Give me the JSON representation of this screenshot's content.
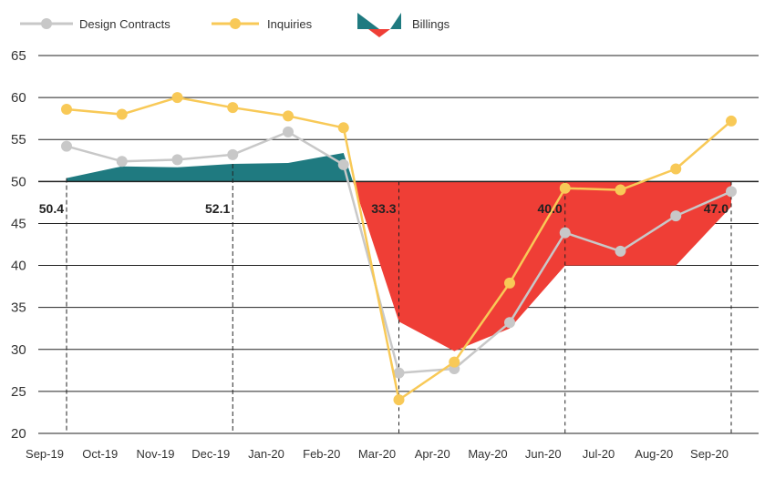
{
  "chart_data": {
    "type": "line",
    "categories": [
      "Sep-19",
      "Oct-19",
      "Nov-19",
      "Dec-19",
      "Jan-20",
      "Feb-20",
      "Mar-20",
      "Apr-20",
      "May-20",
      "Jun-20",
      "Jul-20",
      "Aug-20",
      "Sep-20"
    ],
    "ylim": [
      20,
      65
    ],
    "yticks": [
      20,
      25,
      30,
      35,
      40,
      45,
      50,
      55,
      60,
      65
    ],
    "baseline": 50,
    "grid": true,
    "legend_position": "top-left",
    "series": [
      {
        "name": "Design Contracts",
        "type": "line",
        "color": "#c8c8c8",
        "values": [
          54.2,
          52.4,
          52.6,
          53.2,
          55.9,
          52.0,
          27.2,
          27.7,
          33.2,
          43.9,
          41.7,
          45.9,
          48.8
        ]
      },
      {
        "name": "Inquiries",
        "type": "line",
        "color": "#f8c957",
        "values": [
          58.6,
          58.0,
          60.0,
          58.8,
          57.8,
          56.4,
          24.0,
          28.5,
          37.9,
          49.2,
          49.0,
          51.5,
          57.2
        ]
      },
      {
        "name": "Billings",
        "type": "area",
        "color_above": "#1f7a80",
        "color_below": "#ef3e36",
        "values": [
          50.4,
          51.8,
          51.7,
          52.1,
          52.2,
          53.4,
          33.3,
          29.8,
          32.5,
          40.0,
          40.0,
          40.0,
          47.0
        ]
      }
    ],
    "annotations": [
      {
        "label": "50.4",
        "category": "Sep-19"
      },
      {
        "label": "52.1",
        "category": "Dec-19"
      },
      {
        "label": "33.3",
        "category": "Mar-20"
      },
      {
        "label": "40.0",
        "category": "Jun-20"
      },
      {
        "label": "47.0",
        "category": "Sep-20"
      }
    ]
  },
  "legend": {
    "design_contracts": "Design Contracts",
    "inquiries": "Inquiries",
    "billings": "Billings"
  },
  "colors": {
    "design_contracts": "#c8c8c8",
    "inquiries": "#f8c957",
    "billings_above": "#1f7a80",
    "billings_below": "#ef3e36",
    "grid": "#222222",
    "text": "#333333"
  }
}
